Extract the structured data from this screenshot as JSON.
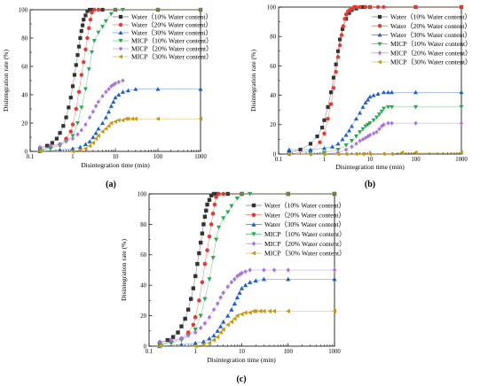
{
  "figure": {
    "colors": {
      "water10": "#333333",
      "water20": "#e03c32",
      "water30": "#1f5fc8",
      "micp10": "#2aa84f",
      "micp20": "#a873dc",
      "micp30": "#c8980e"
    }
  },
  "chart_data": [
    {
      "type": "scatter",
      "caption": "(a)",
      "xlabel": "Disintegration time (min)",
      "ylabel": "Disintegration rate (%)",
      "x_scale": "log",
      "xlim": [
        0.1,
        1000
      ],
      "ylim": [
        0,
        100
      ],
      "x_ticks": [
        0.1,
        1,
        10,
        100,
        1000
      ],
      "x_tick_labels": [
        "0.1",
        "1",
        "10",
        "100",
        "1000"
      ],
      "y_ticks": [
        0,
        20,
        40,
        60,
        80,
        100
      ],
      "y_tick_labels": [
        "0",
        "20",
        "40",
        "60",
        "80",
        "100"
      ],
      "legend_position": "top-right",
      "series": [
        {
          "name": "Water（10% Water content）",
          "key": "water10",
          "marker": "square",
          "x": [
            0.17,
            0.25,
            0.33,
            0.42,
            0.5,
            0.6,
            0.7,
            0.8,
            0.9,
            1.0,
            1.1,
            1.2,
            1.3,
            1.4,
            1.5,
            1.6,
            1.7,
            1.8,
            2.0,
            2.2,
            2.5,
            3,
            5,
            10,
            100,
            1000
          ],
          "y": [
            2,
            4,
            6,
            9,
            13,
            18,
            24,
            31,
            38,
            46,
            54,
            61,
            68,
            74,
            80,
            85,
            89,
            93,
            96,
            99,
            100,
            100,
            100,
            100,
            100,
            100
          ]
        },
        {
          "name": "Water（20% Water content）",
          "key": "water20",
          "marker": "circle",
          "x": [
            0.17,
            0.3,
            0.5,
            0.7,
            0.9,
            1.0,
            1.2,
            1.4,
            1.6,
            1.8,
            2.0,
            2.2,
            2.4,
            2.6,
            2.8,
            3.2,
            4,
            10,
            100,
            1000
          ],
          "y": [
            1,
            3,
            5,
            9,
            14,
            19,
            30,
            42,
            54,
            63,
            72,
            80,
            87,
            93,
            98,
            100,
            100,
            100,
            100,
            100
          ]
        },
        {
          "name": "Water（30% Water content）",
          "key": "water30",
          "marker": "triangle",
          "x": [
            0.17,
            0.5,
            1,
            1.5,
            2,
            2.5,
            3,
            3.5,
            4,
            5,
            6,
            7,
            8,
            9,
            10,
            12,
            15,
            20,
            30,
            100,
            1000
          ],
          "y": [
            0,
            1,
            2,
            3,
            5,
            7,
            10,
            13,
            16,
            20,
            24,
            28,
            32,
            35,
            38,
            40,
            42,
            43,
            44,
            44,
            44
          ]
        },
        {
          "name": "MICP（10% Water content）",
          "key": "micp10",
          "marker": "triangle-down",
          "x": [
            0.17,
            0.3,
            0.5,
            0.7,
            1.0,
            1.3,
            1.6,
            2.0,
            2.4,
            2.8,
            3.2,
            4,
            5,
            6,
            8,
            10,
            15,
            100,
            1000
          ],
          "y": [
            1,
            2,
            4,
            7,
            11,
            20,
            31,
            44,
            58,
            70,
            78,
            84,
            88,
            92,
            97,
            100,
            100,
            100,
            100
          ]
        },
        {
          "name": "MICP（20% Water content）",
          "key": "micp20",
          "marker": "diamond",
          "x": [
            0.17,
            0.3,
            0.5,
            0.7,
            1.0,
            1.3,
            1.6,
            2.0,
            2.5,
            3.0,
            3.5,
            4.0,
            5,
            6,
            7,
            8,
            9,
            10,
            12,
            15
          ],
          "y": [
            3,
            4,
            5,
            7,
            9,
            12,
            15,
            19,
            24,
            28,
            32,
            35,
            39,
            42,
            44,
            46,
            47,
            48,
            49,
            50
          ]
        },
        {
          "name": "MICP（30% Water content）",
          "key": "micp30",
          "marker": "triangle-left",
          "x": [
            0.17,
            1,
            1.5,
            2,
            2.5,
            3,
            3.5,
            4,
            5,
            6,
            7,
            8,
            10,
            12,
            15,
            18,
            20,
            25,
            30,
            100,
            1000
          ],
          "y": [
            0,
            0,
            1,
            2,
            4,
            6,
            9,
            11,
            14,
            16,
            18,
            20,
            21,
            22,
            22,
            23,
            23,
            23,
            23,
            23,
            23
          ]
        }
      ]
    },
    {
      "type": "scatter",
      "caption": "(b)",
      "xlabel": "Disintegration time (min)",
      "ylabel": "Disintegration rate (%)",
      "x_scale": "log",
      "xlim": [
        0.1,
        1000
      ],
      "ylim": [
        0,
        100
      ],
      "x_ticks": [
        0.1,
        1,
        10,
        100,
        1000
      ],
      "x_tick_labels": [
        "0.1",
        "1",
        "10",
        "100",
        "1000"
      ],
      "y_ticks": [
        0,
        20,
        40,
        60,
        80,
        100
      ],
      "y_tick_labels": [
        "0",
        "20",
        "40",
        "60",
        "80",
        "100"
      ],
      "legend_position": "top-right",
      "series": [
        {
          "name": "Water（10% Water content）",
          "key": "water10",
          "marker": "square",
          "x": [
            0.17,
            0.3,
            0.5,
            0.7,
            0.9,
            1.0,
            1.2,
            1.4,
            1.6,
            1.8,
            2.0,
            2.2,
            2.5,
            3.0,
            3.5,
            4,
            5,
            7,
            10,
            100,
            1000
          ],
          "y": [
            1,
            3,
            7,
            12,
            18,
            23,
            32,
            42,
            52,
            61,
            70,
            78,
            85,
            92,
            96,
            98,
            99,
            100,
            100,
            100,
            100
          ]
        },
        {
          "name": "Water（20% Water content）",
          "key": "water20",
          "marker": "circle",
          "x": [
            0.17,
            0.5,
            0.8,
            1.0,
            1.2,
            1.4,
            1.6,
            1.8,
            2.0,
            2.2,
            2.4,
            2.6,
            2.8,
            3.0,
            3.3,
            3.6,
            4.0,
            4.5,
            5,
            6,
            8,
            10,
            15,
            20,
            100,
            1000
          ],
          "y": [
            0,
            2,
            8,
            14,
            24,
            34,
            45,
            56,
            66,
            74,
            81,
            87,
            92,
            95,
            97,
            98,
            99,
            100,
            100,
            100,
            100,
            100,
            100,
            100,
            100,
            100
          ]
        },
        {
          "name": "Water（30% Water content）",
          "key": "water30",
          "marker": "triangle",
          "x": [
            0.17,
            0.5,
            1,
            1.5,
            2,
            2.5,
            3,
            3.5,
            4,
            5,
            6,
            7,
            8,
            9,
            10,
            12,
            15,
            20,
            25,
            30,
            100,
            1000
          ],
          "y": [
            3,
            3,
            4,
            5,
            7,
            10,
            13,
            16,
            19,
            24,
            28,
            32,
            35,
            37,
            39,
            40,
            41,
            42,
            42,
            42,
            42,
            42
          ]
        },
        {
          "name": "MICP（10% Water content）",
          "key": "micp10",
          "marker": "triangle-down",
          "x": [
            0.17,
            0.5,
            1,
            2,
            3,
            4,
            5,
            6,
            7,
            8,
            9,
            10,
            12,
            14,
            16,
            18,
            20,
            25,
            30,
            100,
            1000
          ],
          "y": [
            0,
            0,
            1,
            3,
            6,
            9,
            12,
            15,
            17,
            19,
            20,
            21,
            23,
            25,
            27,
            29,
            31,
            32,
            32,
            32,
            32
          ]
        },
        {
          "name": "MICP（20% Water content）",
          "key": "micp20",
          "marker": "diamond",
          "x": [
            0.17,
            0.5,
            1,
            2,
            3,
            4,
            5,
            6,
            7,
            8,
            9,
            10,
            12,
            14,
            16,
            18,
            20,
            25,
            30,
            100,
            1000
          ],
          "y": [
            0,
            0,
            0,
            1,
            3,
            5,
            7,
            9,
            10,
            11,
            12,
            13,
            14,
            15,
            17,
            19,
            20,
            21,
            21,
            21,
            21
          ]
        },
        {
          "name": "MICP（30% Water content）",
          "key": "micp30",
          "marker": "triangle-left",
          "x": [
            0.17,
            0.5,
            1,
            2,
            3,
            5,
            7,
            10,
            20,
            30,
            50,
            100,
            1000
          ],
          "y": [
            0,
            0,
            0,
            0,
            0,
            0,
            0,
            0,
            0,
            0,
            1,
            1,
            1
          ]
        }
      ]
    },
    {
      "type": "scatter",
      "caption": "(c)",
      "xlabel": "Disintegration time (min)",
      "ylabel": "Disintegration rate (%)",
      "x_scale": "log",
      "xlim": [
        0.1,
        1000
      ],
      "ylim": [
        0,
        100
      ],
      "x_ticks": [
        0.1,
        1,
        10,
        100,
        1000
      ],
      "x_tick_labels": [
        "0.1",
        "1",
        "10",
        "100",
        "1000"
      ],
      "y_ticks": [
        0,
        20,
        40,
        60,
        80,
        100
      ],
      "y_tick_labels": [
        "0",
        "20",
        "40",
        "60",
        "80",
        "100"
      ],
      "legend_position": "top-right",
      "series": [
        {
          "name": "Water（10% Water content）",
          "key": "water10",
          "marker": "square",
          "x": [
            0.17,
            0.25,
            0.33,
            0.42,
            0.5,
            0.6,
            0.7,
            0.8,
            0.9,
            1.0,
            1.1,
            1.2,
            1.3,
            1.4,
            1.5,
            1.6,
            1.7,
            1.8,
            2.0,
            2.2,
            2.5,
            3,
            5,
            10,
            100,
            1000
          ],
          "y": [
            2,
            4,
            6,
            9,
            13,
            18,
            24,
            31,
            38,
            46,
            54,
            61,
            68,
            74,
            80,
            85,
            89,
            93,
            96,
            99,
            100,
            100,
            100,
            100,
            100,
            100
          ]
        },
        {
          "name": "Water（20% Water content）",
          "key": "water20",
          "marker": "circle",
          "x": [
            0.17,
            0.3,
            0.5,
            0.7,
            0.9,
            1.0,
            1.2,
            1.4,
            1.6,
            1.8,
            2.0,
            2.2,
            2.4,
            2.6,
            2.8,
            3.2,
            4,
            10,
            100,
            1000
          ],
          "y": [
            1,
            3,
            5,
            9,
            14,
            19,
            30,
            42,
            54,
            63,
            72,
            80,
            87,
            93,
            98,
            100,
            100,
            100,
            100,
            100
          ]
        },
        {
          "name": "Water（30% Water content）",
          "key": "water30",
          "marker": "triangle",
          "x": [
            0.17,
            0.5,
            1,
            1.5,
            2,
            2.5,
            3,
            3.5,
            4,
            5,
            6,
            7,
            8,
            9,
            10,
            12,
            15,
            20,
            30,
            100,
            1000
          ],
          "y": [
            0,
            1,
            2,
            3,
            5,
            7,
            10,
            13,
            16,
            20,
            24,
            28,
            32,
            35,
            38,
            40,
            42,
            43,
            44,
            44,
            44
          ]
        },
        {
          "name": "MICP（10% Water content）",
          "key": "micp10",
          "marker": "triangle-down",
          "x": [
            0.17,
            0.3,
            0.5,
            0.7,
            1.0,
            1.3,
            1.6,
            2.0,
            2.4,
            2.8,
            3.2,
            4,
            5,
            6,
            8,
            10,
            15,
            100,
            1000
          ],
          "y": [
            1,
            2,
            4,
            7,
            11,
            20,
            31,
            44,
            58,
            70,
            78,
            84,
            88,
            92,
            97,
            100,
            100,
            100,
            100
          ]
        },
        {
          "name": "MICP（20% Water content）",
          "key": "micp20",
          "marker": "diamond",
          "x": [
            0.17,
            0.3,
            0.5,
            0.7,
            1.0,
            1.3,
            1.6,
            2.0,
            2.5,
            3.0,
            3.5,
            4.0,
            5,
            6,
            7,
            8,
            9,
            10,
            12,
            15,
            30,
            50,
            100,
            1000
          ],
          "y": [
            3,
            4,
            5,
            7,
            9,
            12,
            15,
            19,
            24,
            28,
            32,
            35,
            39,
            42,
            44,
            46,
            47,
            48,
            49,
            50,
            50,
            50,
            50,
            50
          ]
        },
        {
          "name": "MICP（30% Water content）",
          "key": "micp30",
          "marker": "triangle-left",
          "x": [
            0.17,
            1,
            1.5,
            2,
            2.5,
            3,
            3.5,
            4,
            5,
            6,
            7,
            8,
            10,
            12,
            15,
            18,
            20,
            25,
            30,
            40,
            50,
            100,
            1000
          ],
          "y": [
            0,
            0,
            1,
            2,
            4,
            6,
            9,
            11,
            14,
            16,
            18,
            20,
            21,
            22,
            22,
            23,
            23,
            23,
            23,
            23,
            23,
            23,
            23
          ]
        }
      ]
    }
  ]
}
